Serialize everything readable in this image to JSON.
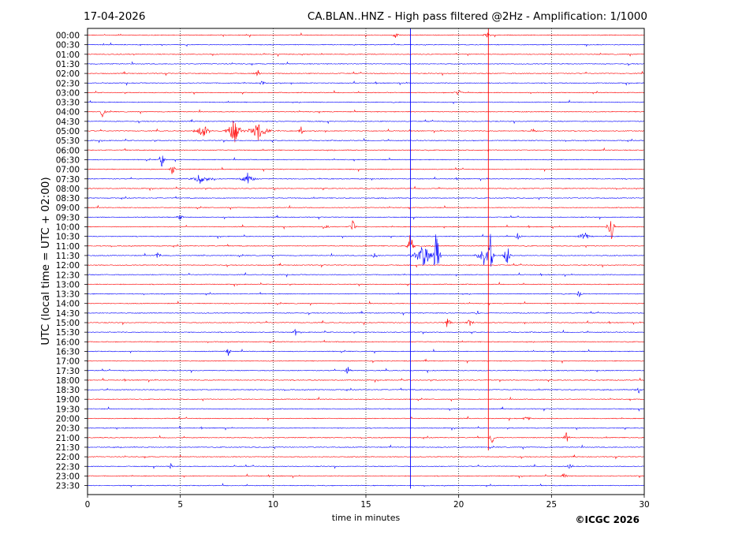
{
  "header": {
    "date": "17-04-2026",
    "title": "CA.BLAN..HNZ - High pass filtered @2Hz - Amplification: 1/1000"
  },
  "copyright": "©ICGC 2026",
  "colors": {
    "even": "#ff0000",
    "odd": "#0000ff",
    "grid": "#000000"
  },
  "chart_data": {
    "type": "line",
    "title": "CA.BLAN..HNZ - High pass filtered @2Hz - Amplification: 1/1000",
    "xlabel": "time in minutes",
    "ylabel": "UTC (local time = UTC + 02:00)",
    "xlim": [
      0,
      30
    ],
    "x_ticks": [
      "0",
      "5",
      "10",
      "15",
      "20",
      "25",
      "30"
    ],
    "x_tick_values": [
      0,
      5,
      10,
      15,
      20,
      25,
      30
    ],
    "vertical_gridlines": [
      5,
      10,
      15,
      20,
      25
    ],
    "grid": "dotted vertical",
    "row_labels": [
      "00:00",
      "00:30",
      "01:00",
      "01:30",
      "02:00",
      "02:30",
      "03:00",
      "03:30",
      "04:00",
      "04:30",
      "05:00",
      "05:30",
      "06:00",
      "06:30",
      "07:00",
      "07:30",
      "08:00",
      "08:30",
      "09:00",
      "09:30",
      "10:00",
      "10:30",
      "11:00",
      "11:30",
      "12:00",
      "12:30",
      "13:00",
      "13:30",
      "14:00",
      "14:30",
      "15:00",
      "15:30",
      "16:00",
      "16:30",
      "17:00",
      "17:30",
      "18:00",
      "18:30",
      "19:00",
      "19:30",
      "20:00",
      "20:30",
      "21:00",
      "21:30",
      "22:00",
      "22:30",
      "23:00",
      "23:30"
    ],
    "events": [
      {
        "row": 0,
        "minute": 16.6,
        "amp": 0.4
      },
      {
        "row": 0,
        "minute": 21.5,
        "amp": 0.5
      },
      {
        "row": 4,
        "minute": 9.2,
        "amp": 0.5
      },
      {
        "row": 5,
        "minute": 9.4,
        "amp": 0.4
      },
      {
        "row": 6,
        "minute": 20.0,
        "amp": 0.5
      },
      {
        "row": 8,
        "minute": 0.8,
        "amp": 0.7
      },
      {
        "row": 10,
        "minute": 6.2,
        "amp": 0.8,
        "width": 0.6
      },
      {
        "row": 10,
        "minute": 7.9,
        "amp": 1.6,
        "width": 0.6
      },
      {
        "row": 10,
        "minute": 9.2,
        "amp": 1.1,
        "width": 0.8
      },
      {
        "row": 10,
        "minute": 11.5,
        "amp": 0.6
      },
      {
        "row": 10,
        "minute": 24.0,
        "amp": 0.5
      },
      {
        "row": 13,
        "minute": 4.0,
        "amp": 0.9
      },
      {
        "row": 14,
        "minute": 4.6,
        "amp": 0.8
      },
      {
        "row": 15,
        "minute": 6.1,
        "amp": 0.6,
        "width": 0.8
      },
      {
        "row": 15,
        "minute": 8.6,
        "amp": 0.8,
        "width": 0.6
      },
      {
        "row": 19,
        "minute": 5.0,
        "amp": 0.4
      },
      {
        "row": 20,
        "minute": 12.8,
        "amp": 0.6
      },
      {
        "row": 20,
        "minute": 14.3,
        "amp": 0.9
      },
      {
        "row": 20,
        "minute": 28.2,
        "amp": 2.2
      },
      {
        "row": 21,
        "minute": 23.2,
        "amp": 0.5
      },
      {
        "row": 21,
        "minute": 26.8,
        "amp": 0.5,
        "width": 0.6
      },
      {
        "row": 22,
        "minute": 17.4,
        "amp": 2.0
      },
      {
        "row": 23,
        "minute": 3.8,
        "amp": 0.5
      },
      {
        "row": 23,
        "minute": 15.5,
        "amp": 0.6
      },
      {
        "row": 23,
        "minute": 18.1,
        "amp": 1.4,
        "width": 0.8
      },
      {
        "row": 23,
        "minute": 18.8,
        "amp": 3.8
      },
      {
        "row": 23,
        "minute": 21.4,
        "amp": 1.5,
        "width": 0.6
      },
      {
        "row": 23,
        "minute": 21.7,
        "amp": 2.5
      },
      {
        "row": 23,
        "minute": 22.6,
        "amp": 1.6
      },
      {
        "row": 27,
        "minute": 26.5,
        "amp": 0.5
      },
      {
        "row": 29,
        "minute": 21.0,
        "amp": 0.4
      },
      {
        "row": 30,
        "minute": 19.4,
        "amp": 0.7
      },
      {
        "row": 30,
        "minute": 20.6,
        "amp": 0.5
      },
      {
        "row": 31,
        "minute": 11.2,
        "amp": 0.5
      },
      {
        "row": 33,
        "minute": 7.6,
        "amp": 0.5
      },
      {
        "row": 35,
        "minute": 14.0,
        "amp": 0.6
      },
      {
        "row": 37,
        "minute": 29.7,
        "amp": 0.5
      },
      {
        "row": 40,
        "minute": 23.7,
        "amp": 0.4
      },
      {
        "row": 42,
        "minute": 21.8,
        "amp": 0.8
      },
      {
        "row": 42,
        "minute": 25.8,
        "amp": 0.7
      },
      {
        "row": 45,
        "minute": 4.5,
        "amp": 0.4
      },
      {
        "row": 45,
        "minute": 26.0,
        "amp": 0.4
      },
      {
        "row": 46,
        "minute": 25.7,
        "amp": 0.5
      }
    ],
    "spanning_traces": [
      {
        "minute": 17.4,
        "color": "#0000ff",
        "from_row": 0,
        "to_row": 47
      },
      {
        "minute": 21.6,
        "color": "#ff0000",
        "from_row": 0,
        "to_row": 43
      }
    ]
  }
}
